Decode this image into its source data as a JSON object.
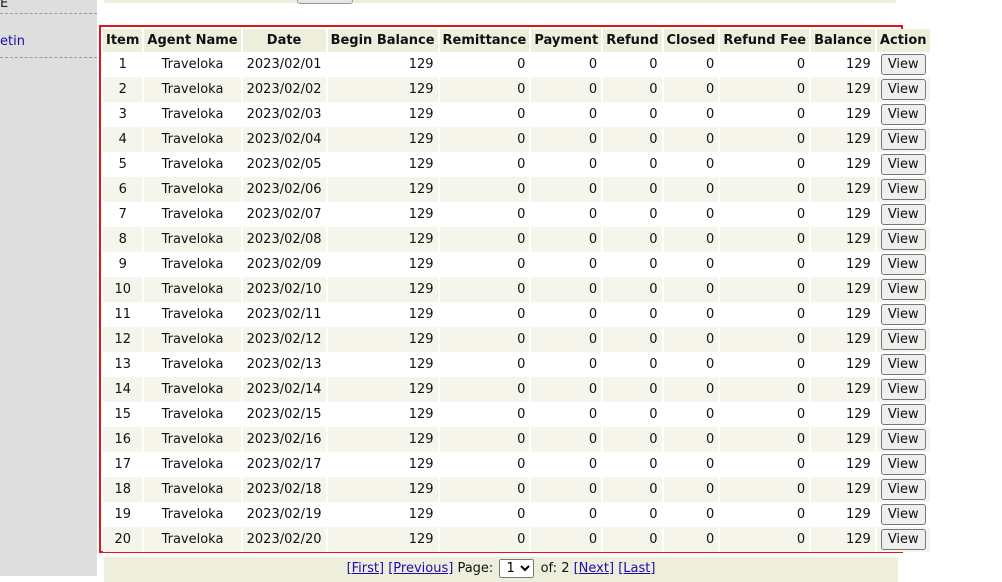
{
  "sidebar": {
    "top_fragment": "E",
    "link_fragment": "etin"
  },
  "table": {
    "columns": [
      "Item",
      "Agent Name",
      "Date",
      "Begin Balance",
      "Remittance",
      "Payment",
      "Refund",
      "Closed",
      "Refund Fee",
      "Balance",
      "Action"
    ],
    "rows": [
      {
        "item": "1",
        "agent": "Traveloka",
        "date": "2023/02/01",
        "begin": "129",
        "remittance": "0",
        "payment": "0",
        "refund": "0",
        "closed": "0",
        "refund_fee": "0",
        "balance": "129",
        "action": "View"
      },
      {
        "item": "2",
        "agent": "Traveloka",
        "date": "2023/02/02",
        "begin": "129",
        "remittance": "0",
        "payment": "0",
        "refund": "0",
        "closed": "0",
        "refund_fee": "0",
        "balance": "129",
        "action": "View"
      },
      {
        "item": "3",
        "agent": "Traveloka",
        "date": "2023/02/03",
        "begin": "129",
        "remittance": "0",
        "payment": "0",
        "refund": "0",
        "closed": "0",
        "refund_fee": "0",
        "balance": "129",
        "action": "View"
      },
      {
        "item": "4",
        "agent": "Traveloka",
        "date": "2023/02/04",
        "begin": "129",
        "remittance": "0",
        "payment": "0",
        "refund": "0",
        "closed": "0",
        "refund_fee": "0",
        "balance": "129",
        "action": "View"
      },
      {
        "item": "5",
        "agent": "Traveloka",
        "date": "2023/02/05",
        "begin": "129",
        "remittance": "0",
        "payment": "0",
        "refund": "0",
        "closed": "0",
        "refund_fee": "0",
        "balance": "129",
        "action": "View"
      },
      {
        "item": "6",
        "agent": "Traveloka",
        "date": "2023/02/06",
        "begin": "129",
        "remittance": "0",
        "payment": "0",
        "refund": "0",
        "closed": "0",
        "refund_fee": "0",
        "balance": "129",
        "action": "View"
      },
      {
        "item": "7",
        "agent": "Traveloka",
        "date": "2023/02/07",
        "begin": "129",
        "remittance": "0",
        "payment": "0",
        "refund": "0",
        "closed": "0",
        "refund_fee": "0",
        "balance": "129",
        "action": "View"
      },
      {
        "item": "8",
        "agent": "Traveloka",
        "date": "2023/02/08",
        "begin": "129",
        "remittance": "0",
        "payment": "0",
        "refund": "0",
        "closed": "0",
        "refund_fee": "0",
        "balance": "129",
        "action": "View"
      },
      {
        "item": "9",
        "agent": "Traveloka",
        "date": "2023/02/09",
        "begin": "129",
        "remittance": "0",
        "payment": "0",
        "refund": "0",
        "closed": "0",
        "refund_fee": "0",
        "balance": "129",
        "action": "View"
      },
      {
        "item": "10",
        "agent": "Traveloka",
        "date": "2023/02/10",
        "begin": "129",
        "remittance": "0",
        "payment": "0",
        "refund": "0",
        "closed": "0",
        "refund_fee": "0",
        "balance": "129",
        "action": "View"
      },
      {
        "item": "11",
        "agent": "Traveloka",
        "date": "2023/02/11",
        "begin": "129",
        "remittance": "0",
        "payment": "0",
        "refund": "0",
        "closed": "0",
        "refund_fee": "0",
        "balance": "129",
        "action": "View"
      },
      {
        "item": "12",
        "agent": "Traveloka",
        "date": "2023/02/12",
        "begin": "129",
        "remittance": "0",
        "payment": "0",
        "refund": "0",
        "closed": "0",
        "refund_fee": "0",
        "balance": "129",
        "action": "View"
      },
      {
        "item": "13",
        "agent": "Traveloka",
        "date": "2023/02/13",
        "begin": "129",
        "remittance": "0",
        "payment": "0",
        "refund": "0",
        "closed": "0",
        "refund_fee": "0",
        "balance": "129",
        "action": "View"
      },
      {
        "item": "14",
        "agent": "Traveloka",
        "date": "2023/02/14",
        "begin": "129",
        "remittance": "0",
        "payment": "0",
        "refund": "0",
        "closed": "0",
        "refund_fee": "0",
        "balance": "129",
        "action": "View"
      },
      {
        "item": "15",
        "agent": "Traveloka",
        "date": "2023/02/15",
        "begin": "129",
        "remittance": "0",
        "payment": "0",
        "refund": "0",
        "closed": "0",
        "refund_fee": "0",
        "balance": "129",
        "action": "View"
      },
      {
        "item": "16",
        "agent": "Traveloka",
        "date": "2023/02/16",
        "begin": "129",
        "remittance": "0",
        "payment": "0",
        "refund": "0",
        "closed": "0",
        "refund_fee": "0",
        "balance": "129",
        "action": "View"
      },
      {
        "item": "17",
        "agent": "Traveloka",
        "date": "2023/02/17",
        "begin": "129",
        "remittance": "0",
        "payment": "0",
        "refund": "0",
        "closed": "0",
        "refund_fee": "0",
        "balance": "129",
        "action": "View"
      },
      {
        "item": "18",
        "agent": "Traveloka",
        "date": "2023/02/18",
        "begin": "129",
        "remittance": "0",
        "payment": "0",
        "refund": "0",
        "closed": "0",
        "refund_fee": "0",
        "balance": "129",
        "action": "View"
      },
      {
        "item": "19",
        "agent": "Traveloka",
        "date": "2023/02/19",
        "begin": "129",
        "remittance": "0",
        "payment": "0",
        "refund": "0",
        "closed": "0",
        "refund_fee": "0",
        "balance": "129",
        "action": "View"
      },
      {
        "item": "20",
        "agent": "Traveloka",
        "date": "2023/02/20",
        "begin": "129",
        "remittance": "0",
        "payment": "0",
        "refund": "0",
        "closed": "0",
        "refund_fee": "0",
        "balance": "129",
        "action": "View"
      }
    ]
  },
  "pager": {
    "first": "[First]",
    "previous": "[Previous]",
    "page_label": "Page:",
    "current_page": "1",
    "page_options": [
      "1",
      "2"
    ],
    "of_label": "of:",
    "total_pages": "2",
    "next": "[Next]",
    "last": "[Last]"
  },
  "colors": {
    "header_bg": "#eeeedc",
    "stripe_bg": "#f5f5eb",
    "highlight_border": "#e0141e",
    "link": "#1a0dab",
    "sidebar_bg": "#dedede"
  }
}
